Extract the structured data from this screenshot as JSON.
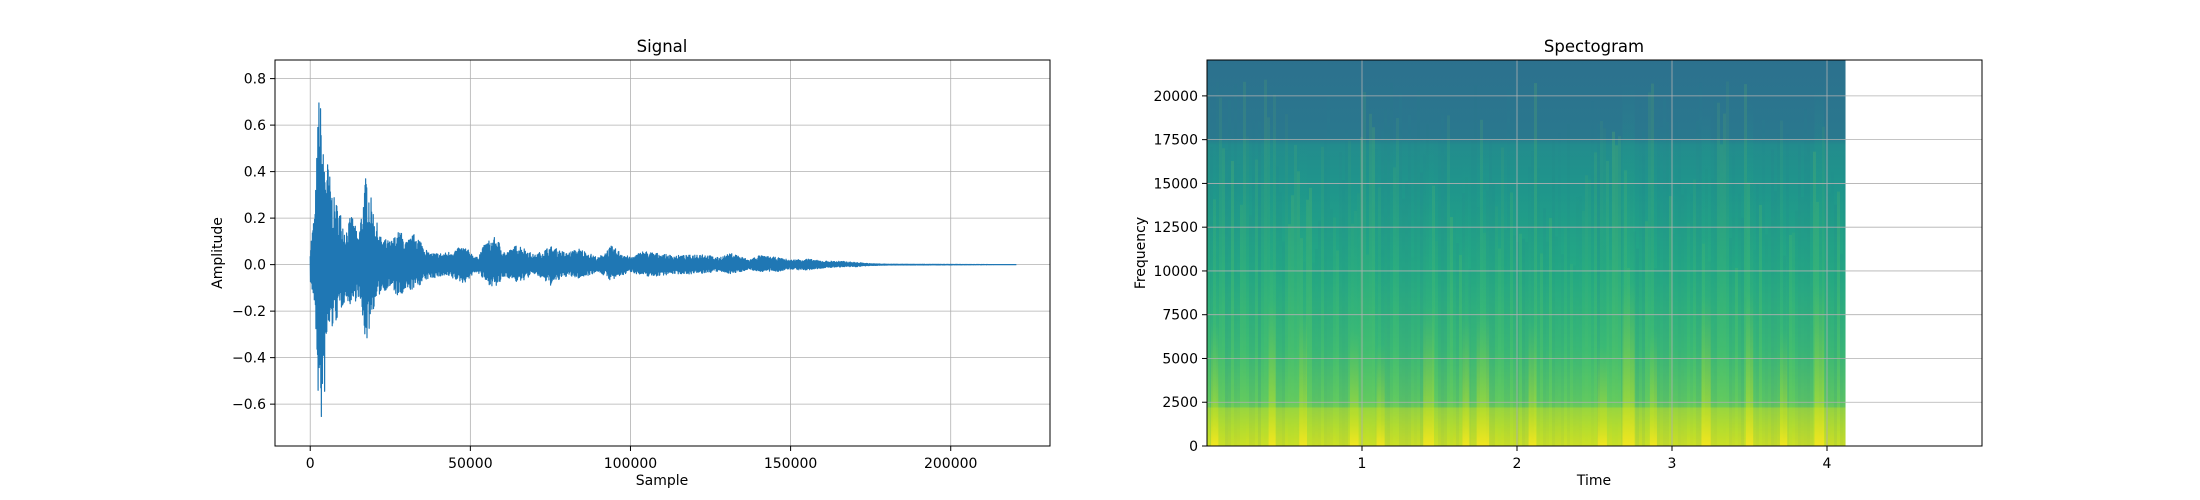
{
  "chart_data": [
    {
      "type": "line",
      "title": "Signal",
      "xlabel": "Sample",
      "ylabel": "Amplitude",
      "xlim": [
        -11000,
        231000
      ],
      "ylim": [
        -0.78,
        0.88
      ],
      "grid": true,
      "color": "#1f77b4",
      "x_ticks": [
        0,
        50000,
        100000,
        150000,
        200000
      ],
      "x_tick_labels": [
        "0",
        "50000",
        "100000",
        "150000",
        "200000"
      ],
      "y_ticks": [
        0.8,
        0.6,
        0.4,
        0.2,
        0.0,
        -0.2,
        -0.4,
        -0.6
      ],
      "y_tick_labels": [
        "0.8",
        "0.6",
        "0.4",
        "0.2",
        "0.0",
        "−0.2",
        "−0.4",
        "−0.6"
      ],
      "x_end": 220500,
      "envelope": [
        [
          0,
          0.08,
          -0.07
        ],
        [
          1500,
          0.25,
          -0.2
        ],
        [
          2800,
          0.8,
          -0.7
        ],
        [
          4000,
          0.5,
          -0.7
        ],
        [
          5500,
          0.45,
          -0.3
        ],
        [
          7000,
          0.3,
          -0.28
        ],
        [
          9000,
          0.25,
          -0.22
        ],
        [
          11000,
          0.15,
          -0.15
        ],
        [
          13000,
          0.22,
          -0.18
        ],
        [
          15000,
          0.12,
          -0.14
        ],
        [
          17500,
          0.4,
          -0.35
        ],
        [
          19500,
          0.25,
          -0.2
        ],
        [
          22000,
          0.12,
          -0.12
        ],
        [
          25000,
          0.1,
          -0.1
        ],
        [
          28000,
          0.15,
          -0.15
        ],
        [
          30000,
          0.1,
          -0.12
        ],
        [
          33000,
          0.14,
          -0.1
        ],
        [
          37000,
          0.05,
          -0.06
        ],
        [
          42000,
          0.05,
          -0.05
        ],
        [
          48000,
          0.08,
          -0.08
        ],
        [
          52000,
          0.03,
          -0.03
        ],
        [
          55000,
          0.1,
          -0.08
        ],
        [
          58000,
          0.12,
          -0.1
        ],
        [
          61000,
          0.05,
          -0.05
        ],
        [
          65000,
          0.09,
          -0.08
        ],
        [
          70000,
          0.04,
          -0.04
        ],
        [
          75000,
          0.08,
          -0.09
        ],
        [
          80000,
          0.05,
          -0.05
        ],
        [
          84000,
          0.07,
          -0.06
        ],
        [
          90000,
          0.03,
          -0.03
        ],
        [
          94000,
          0.08,
          -0.07
        ],
        [
          100000,
          0.03,
          -0.03
        ],
        [
          104000,
          0.06,
          -0.05
        ],
        [
          108000,
          0.05,
          -0.05
        ],
        [
          113000,
          0.04,
          -0.04
        ],
        [
          118000,
          0.04,
          -0.04
        ],
        [
          122000,
          0.05,
          -0.04
        ],
        [
          127000,
          0.03,
          -0.03
        ],
        [
          132000,
          0.05,
          -0.04
        ],
        [
          137000,
          0.02,
          -0.02
        ],
        [
          140000,
          0.04,
          -0.03
        ],
        [
          146000,
          0.03,
          -0.03
        ],
        [
          150000,
          0.02,
          -0.02
        ],
        [
          155000,
          0.025,
          -0.025
        ],
        [
          160000,
          0.015,
          -0.015
        ],
        [
          165000,
          0.015,
          -0.01
        ],
        [
          170000,
          0.01,
          -0.01
        ],
        [
          175000,
          0.004,
          -0.004
        ],
        [
          180000,
          0.002,
          -0.002
        ],
        [
          220500,
          0.0,
          0.0
        ]
      ]
    },
    {
      "type": "heatmap",
      "title": "Spectogram",
      "xlabel": "Time",
      "ylabel": "Frequency",
      "xlim": [
        0,
        5.0
      ],
      "ylim": [
        0,
        22050
      ],
      "data_extent_x": [
        0,
        4.12
      ],
      "grid": true,
      "colormap": "viridis",
      "x_ticks": [
        1,
        2,
        3,
        4
      ],
      "x_tick_labels": [
        "1",
        "2",
        "3",
        "4"
      ],
      "y_ticks": [
        0,
        2500,
        5000,
        7500,
        10000,
        12500,
        15000,
        17500,
        20000
      ],
      "y_tick_labels": [
        "0",
        "2500",
        "5000",
        "7500",
        "10000",
        "12500",
        "15000",
        "17500",
        "20000"
      ],
      "onsets": [
        0.05,
        0.42,
        0.62,
        0.95,
        1.12,
        1.43,
        1.67,
        1.78,
        2.1,
        2.55,
        2.72,
        2.88,
        3.22,
        3.5,
        3.72,
        3.95
      ]
    }
  ]
}
